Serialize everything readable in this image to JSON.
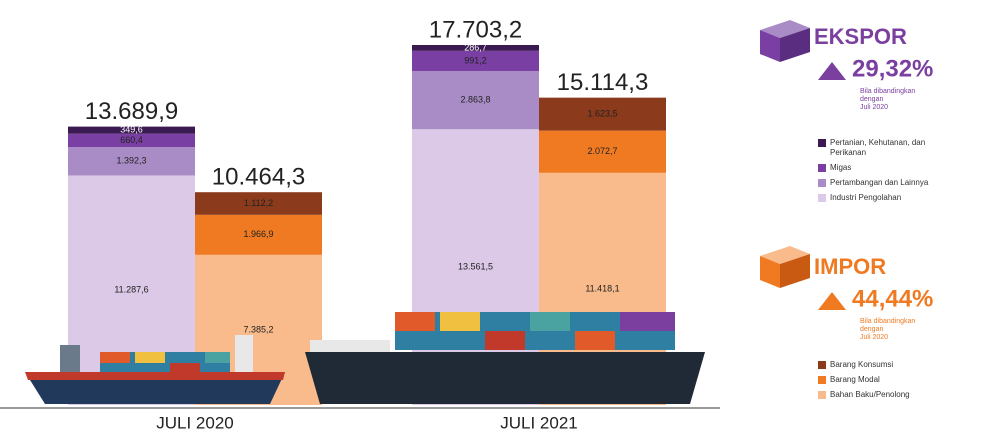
{
  "chart_data": {
    "type": "bar",
    "stacked": true,
    "categories": [
      "JULI 2020",
      "JULI 2021"
    ],
    "groups": [
      {
        "title": "EKSPOR",
        "color": "#7b3fa0",
        "change": {
          "value": 29.32,
          "label": "29,32%"
        },
        "note": [
          "Bila dibandingkan",
          "dengan",
          "Juli 2020"
        ],
        "totals": [
          13689.9,
          17703.2
        ],
        "total_labels": [
          "13.689,9",
          "17.703,2"
        ],
        "series": [
          {
            "name": "Industri Pengolahan",
            "color": "#dcc9e8",
            "values": [
              11287.6,
              13561.5
            ],
            "value_labels": [
              "11.287,6",
              "13.561,5"
            ]
          },
          {
            "name": "Pertambangan dan Lainnya",
            "color": "#a98cc6",
            "values": [
              1392.3,
              2863.8
            ],
            "value_labels": [
              "1.392,3",
              "2.863,8"
            ]
          },
          {
            "name": "Migas",
            "color": "#7a3fa2",
            "values": [
              660.4,
              991.2
            ],
            "value_labels": [
              "660,4",
              "991,2"
            ]
          },
          {
            "name": "Pertanian, Kehutanan, dan Perikanan",
            "color": "#3a1a50",
            "values": [
              349.6,
              286.7
            ],
            "value_labels": [
              "349,6",
              "286,7"
            ]
          }
        ]
      },
      {
        "title": "IMPOR",
        "color": "#f07a22",
        "change": {
          "value": 44.44,
          "label": "44,44%"
        },
        "note": [
          "Bila dibandingkan",
          "dengan",
          "Juli 2020"
        ],
        "totals": [
          10464.3,
          15114.3
        ],
        "total_labels": [
          "10.464,3",
          "15.114,3"
        ],
        "series": [
          {
            "name": "Bahan Baku/Penolong",
            "color": "#f9bb8c",
            "values": [
              7385.2,
              11418.1
            ],
            "value_labels": [
              "7.385,2",
              "11.418,1"
            ]
          },
          {
            "name": "Barang Modal",
            "color": "#f07a22",
            "values": [
              1966.9,
              2072.7
            ],
            "value_labels": [
              "1.966,9",
              "2.072,7"
            ]
          },
          {
            "name": "Barang Konsumsi",
            "color": "#8b3a1c",
            "values": [
              1112.2,
              1623.5
            ],
            "value_labels": [
              "1.112,2",
              "1.623,5"
            ]
          }
        ]
      }
    ]
  }
}
